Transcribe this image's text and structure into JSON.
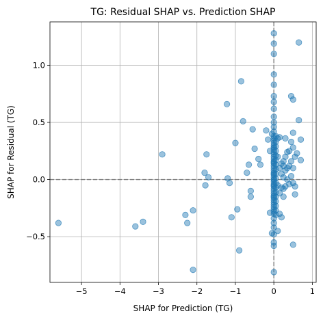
{
  "chart_data": {
    "type": "scatter",
    "title": "TG: Residual SHAP vs. Prediction SHAP",
    "xlabel": "SHAP for Prediction (TG)",
    "ylabel": "SHAP for Residual (TG)",
    "xlim": [
      -5.82,
      1.1
    ],
    "ylim": [
      -0.9,
      1.38
    ],
    "xticks": [
      -5,
      -4,
      -3,
      -2,
      -1,
      0,
      1
    ],
    "yticks": [
      -0.5,
      0.0,
      0.5,
      1.0
    ],
    "xtick_labels": [
      "−5",
      "−4",
      "−3",
      "−2",
      "−1",
      "0",
      "1"
    ],
    "ytick_labels": [
      "−0.5",
      "0.0",
      "0.5",
      "1.0"
    ],
    "grid": true,
    "reference_lines": {
      "x": 0,
      "y": 0,
      "style": "dashed",
      "color": "#808080"
    },
    "point_color": "#1f77b4",
    "point_alpha": 0.45,
    "series": [
      {
        "x": [
          -5.6,
          -3.6,
          -3.4,
          -2.9,
          -2.3,
          -2.25,
          -2.1,
          -2.1,
          -1.8,
          -1.78,
          -1.75,
          -1.7,
          -1.22,
          -1.2,
          -1.15,
          -1.1,
          -1.0,
          -0.95,
          -0.9,
          -0.85,
          -0.8,
          -0.7,
          -0.65,
          -0.6,
          -0.6,
          -0.55,
          -0.5,
          -0.4,
          -0.35,
          -0.2,
          -0.15,
          -0.1,
          -0.1,
          -0.05,
          -0.05,
          0.0,
          0.0,
          0.0,
          0.0,
          0.0,
          0.0,
          0.0,
          0.0,
          0.0,
          0.0,
          0.0,
          0.0,
          0.0,
          0.0,
          0.0,
          0.0,
          0.0,
          0.0,
          0.0,
          0.0,
          0.0,
          0.0,
          0.0,
          0.0,
          0.0,
          0.0,
          0.0,
          0.0,
          0.0,
          0.0,
          0.0,
          0.0,
          0.0,
          0.0,
          0.0,
          0.0,
          0.0,
          0.0,
          0.0,
          0.0,
          0.0,
          0.0,
          0.0,
          0.0,
          0.0,
          0.0,
          0.0,
          0.0,
          0.0,
          0.0,
          0.0,
          0.0,
          0.0,
          0.0,
          0.0,
          0.0,
          0.0,
          0.0,
          0.0,
          0.0,
          0.05,
          0.05,
          0.05,
          0.05,
          0.05,
          0.05,
          0.05,
          0.05,
          0.05,
          0.05,
          0.05,
          0.05,
          0.05,
          0.05,
          0.05,
          0.05,
          0.05,
          0.05,
          0.1,
          0.1,
          0.1,
          0.1,
          0.15,
          0.15,
          0.15,
          0.15,
          0.2,
          0.2,
          0.2,
          0.2,
          0.25,
          0.25,
          0.25,
          0.25,
          0.25,
          0.3,
          0.3,
          0.3,
          0.3,
          0.35,
          0.35,
          0.35,
          0.4,
          0.4,
          0.4,
          0.45,
          0.45,
          0.45,
          0.45,
          0.5,
          0.5,
          0.5,
          0.5,
          0.5,
          0.5,
          0.55,
          0.55,
          0.55,
          0.6,
          0.65,
          0.65,
          0.7,
          0.7
        ],
        "y": [
          -0.38,
          -0.41,
          -0.37,
          0.22,
          -0.31,
          -0.38,
          -0.27,
          -0.79,
          0.06,
          -0.05,
          0.22,
          0.02,
          0.66,
          0.01,
          -0.03,
          -0.33,
          0.32,
          -0.26,
          -0.62,
          0.86,
          0.51,
          0.06,
          0.13,
          -0.15,
          -0.1,
          0.44,
          0.27,
          0.18,
          0.13,
          0.43,
          0.35,
          -0.29,
          0.25,
          -0.47,
          0.4,
          1.28,
          1.19,
          1.1,
          0.92,
          0.83,
          0.73,
          0.68,
          0.62,
          0.55,
          0.5,
          0.46,
          0.42,
          0.38,
          0.34,
          0.3,
          0.26,
          0.22,
          0.18,
          0.14,
          0.1,
          0.06,
          0.02,
          -0.02,
          -0.06,
          -0.1,
          -0.14,
          -0.18,
          -0.22,
          -0.26,
          -0.3,
          -0.34,
          -0.38,
          -0.42,
          -0.48,
          -0.55,
          -0.58,
          -0.81,
          0.2,
          0.16,
          0.12,
          0.08,
          0.04,
          0.0,
          -0.04,
          -0.08,
          -0.12,
          -0.16,
          -0.2,
          -0.24,
          0.24,
          0.28,
          0.32,
          0.36,
          0.05,
          -0.05,
          0.15,
          -0.15,
          0.28,
          -0.28,
          0.0,
          0.38,
          0.33,
          0.29,
          0.25,
          0.21,
          0.17,
          0.13,
          0.09,
          0.05,
          0.01,
          -0.03,
          -0.07,
          -0.11,
          -0.15,
          -0.19,
          -0.23,
          -0.27,
          -0.31,
          0.36,
          0.2,
          -0.05,
          -0.45,
          0.37,
          0.1,
          -0.12,
          -0.3,
          0.14,
          0.05,
          -0.07,
          -0.33,
          0.16,
          0.12,
          0.02,
          -0.08,
          -0.15,
          0.36,
          0.2,
          0.08,
          -0.06,
          0.24,
          0.1,
          0.0,
          0.25,
          0.12,
          -0.04,
          0.73,
          0.33,
          0.16,
          0.03,
          0.7,
          0.41,
          0.28,
          0.1,
          -0.03,
          -0.57,
          0.2,
          -0.13,
          -0.06,
          0.23,
          1.2,
          0.52,
          0.35,
          0.17
        ]
      }
    ]
  }
}
